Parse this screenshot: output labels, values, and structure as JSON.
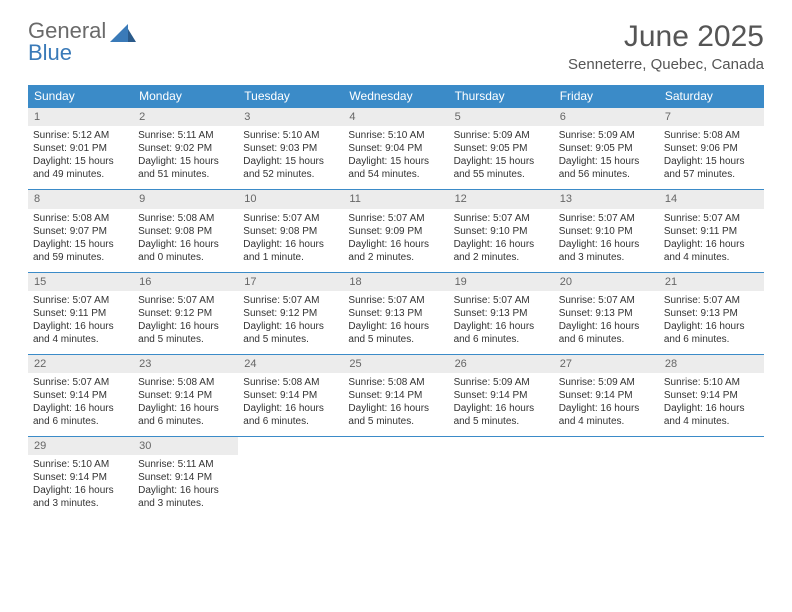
{
  "logo": {
    "line1": "General",
    "line2": "Blue"
  },
  "title": "June 2025",
  "location": "Senneterre, Quebec, Canada",
  "colors": {
    "header_bg": "#3b8bc8",
    "header_text": "#ffffff",
    "daynum_bg": "#ececec",
    "daynum_text": "#666666",
    "border": "#3b8bc8",
    "body_text": "#333333",
    "logo_gray": "#6a6a6a",
    "logo_blue": "#3a7ab8"
  },
  "dayNames": [
    "Sunday",
    "Monday",
    "Tuesday",
    "Wednesday",
    "Thursday",
    "Friday",
    "Saturday"
  ],
  "weeks": [
    [
      {
        "n": "1",
        "sr": "5:12 AM",
        "ss": "9:01 PM",
        "dl": "15 hours and 49 minutes."
      },
      {
        "n": "2",
        "sr": "5:11 AM",
        "ss": "9:02 PM",
        "dl": "15 hours and 51 minutes."
      },
      {
        "n": "3",
        "sr": "5:10 AM",
        "ss": "9:03 PM",
        "dl": "15 hours and 52 minutes."
      },
      {
        "n": "4",
        "sr": "5:10 AM",
        "ss": "9:04 PM",
        "dl": "15 hours and 54 minutes."
      },
      {
        "n": "5",
        "sr": "5:09 AM",
        "ss": "9:05 PM",
        "dl": "15 hours and 55 minutes."
      },
      {
        "n": "6",
        "sr": "5:09 AM",
        "ss": "9:05 PM",
        "dl": "15 hours and 56 minutes."
      },
      {
        "n": "7",
        "sr": "5:08 AM",
        "ss": "9:06 PM",
        "dl": "15 hours and 57 minutes."
      }
    ],
    [
      {
        "n": "8",
        "sr": "5:08 AM",
        "ss": "9:07 PM",
        "dl": "15 hours and 59 minutes."
      },
      {
        "n": "9",
        "sr": "5:08 AM",
        "ss": "9:08 PM",
        "dl": "16 hours and 0 minutes."
      },
      {
        "n": "10",
        "sr": "5:07 AM",
        "ss": "9:08 PM",
        "dl": "16 hours and 1 minute."
      },
      {
        "n": "11",
        "sr": "5:07 AM",
        "ss": "9:09 PM",
        "dl": "16 hours and 2 minutes."
      },
      {
        "n": "12",
        "sr": "5:07 AM",
        "ss": "9:10 PM",
        "dl": "16 hours and 2 minutes."
      },
      {
        "n": "13",
        "sr": "5:07 AM",
        "ss": "9:10 PM",
        "dl": "16 hours and 3 minutes."
      },
      {
        "n": "14",
        "sr": "5:07 AM",
        "ss": "9:11 PM",
        "dl": "16 hours and 4 minutes."
      }
    ],
    [
      {
        "n": "15",
        "sr": "5:07 AM",
        "ss": "9:11 PM",
        "dl": "16 hours and 4 minutes."
      },
      {
        "n": "16",
        "sr": "5:07 AM",
        "ss": "9:12 PM",
        "dl": "16 hours and 5 minutes."
      },
      {
        "n": "17",
        "sr": "5:07 AM",
        "ss": "9:12 PM",
        "dl": "16 hours and 5 minutes."
      },
      {
        "n": "18",
        "sr": "5:07 AM",
        "ss": "9:13 PM",
        "dl": "16 hours and 5 minutes."
      },
      {
        "n": "19",
        "sr": "5:07 AM",
        "ss": "9:13 PM",
        "dl": "16 hours and 6 minutes."
      },
      {
        "n": "20",
        "sr": "5:07 AM",
        "ss": "9:13 PM",
        "dl": "16 hours and 6 minutes."
      },
      {
        "n": "21",
        "sr": "5:07 AM",
        "ss": "9:13 PM",
        "dl": "16 hours and 6 minutes."
      }
    ],
    [
      {
        "n": "22",
        "sr": "5:07 AM",
        "ss": "9:14 PM",
        "dl": "16 hours and 6 minutes."
      },
      {
        "n": "23",
        "sr": "5:08 AM",
        "ss": "9:14 PM",
        "dl": "16 hours and 6 minutes."
      },
      {
        "n": "24",
        "sr": "5:08 AM",
        "ss": "9:14 PM",
        "dl": "16 hours and 6 minutes."
      },
      {
        "n": "25",
        "sr": "5:08 AM",
        "ss": "9:14 PM",
        "dl": "16 hours and 5 minutes."
      },
      {
        "n": "26",
        "sr": "5:09 AM",
        "ss": "9:14 PM",
        "dl": "16 hours and 5 minutes."
      },
      {
        "n": "27",
        "sr": "5:09 AM",
        "ss": "9:14 PM",
        "dl": "16 hours and 4 minutes."
      },
      {
        "n": "28",
        "sr": "5:10 AM",
        "ss": "9:14 PM",
        "dl": "16 hours and 4 minutes."
      }
    ],
    [
      {
        "n": "29",
        "sr": "5:10 AM",
        "ss": "9:14 PM",
        "dl": "16 hours and 3 minutes."
      },
      {
        "n": "30",
        "sr": "5:11 AM",
        "ss": "9:14 PM",
        "dl": "16 hours and 3 minutes."
      },
      null,
      null,
      null,
      null,
      null
    ]
  ],
  "labels": {
    "sunrise": "Sunrise: ",
    "sunset": "Sunset: ",
    "daylight": "Daylight: "
  }
}
